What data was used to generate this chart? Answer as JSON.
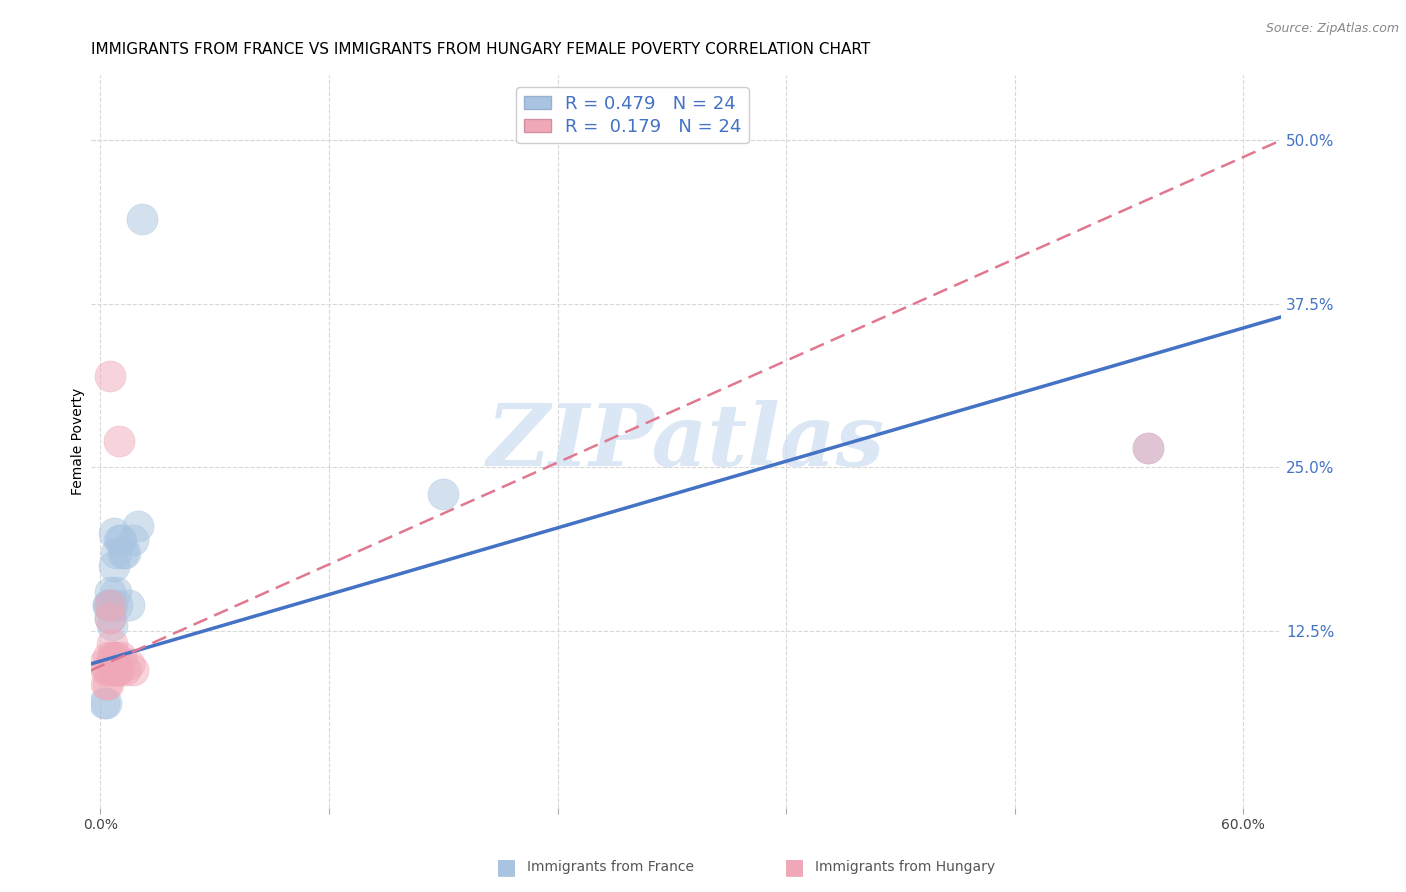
{
  "title": "IMMIGRANTS FROM FRANCE VS IMMIGRANTS FROM HUNGARY FEMALE POVERTY CORRELATION CHART",
  "source": "Source: ZipAtlas.com",
  "xlabel": "",
  "ylabel": "Female Poverty",
  "xlim": [
    -0.005,
    0.62
  ],
  "ylim": [
    -0.01,
    0.55
  ],
  "x_ticks": [
    0.0,
    0.12,
    0.24,
    0.36,
    0.48,
    0.6
  ],
  "x_tick_labels": [
    "0.0%",
    "",
    "",
    "",
    "",
    "60.0%"
  ],
  "y_tick_labels_right": [
    "12.5%",
    "25.0%",
    "37.5%",
    "50.0%"
  ],
  "y_ticks_right": [
    0.125,
    0.25,
    0.375,
    0.5
  ],
  "france_R": 0.479,
  "hungary_R": 0.179,
  "N": 24,
  "france_color": "#a8c4e0",
  "hungary_color": "#f0a8b8",
  "france_line_color": "#4472c4",
  "hungary_line_color": "#e07890",
  "watermark": "ZIPatlas",
  "watermark_color": "#ccddf0",
  "legend_text_color": "#4472c4",
  "france_x": [
    0.002,
    0.003,
    0.004,
    0.004,
    0.005,
    0.005,
    0.005,
    0.006,
    0.006,
    0.007,
    0.007,
    0.008,
    0.008,
    0.009,
    0.01,
    0.011,
    0.012,
    0.013,
    0.015,
    0.017,
    0.02,
    0.022,
    0.18,
    0.55
  ],
  "france_y": [
    0.07,
    0.07,
    0.145,
    0.145,
    0.155,
    0.145,
    0.135,
    0.145,
    0.13,
    0.175,
    0.2,
    0.155,
    0.185,
    0.145,
    0.195,
    0.195,
    0.185,
    0.185,
    0.145,
    0.195,
    0.205,
    0.44,
    0.23,
    0.265
  ],
  "hungary_x": [
    0.002,
    0.003,
    0.003,
    0.004,
    0.004,
    0.004,
    0.005,
    0.005,
    0.005,
    0.006,
    0.006,
    0.006,
    0.007,
    0.007,
    0.008,
    0.008,
    0.009,
    0.01,
    0.01,
    0.011,
    0.013,
    0.015,
    0.017,
    0.55
  ],
  "hungary_y": [
    0.1,
    0.085,
    0.095,
    0.085,
    0.095,
    0.105,
    0.32,
    0.135,
    0.145,
    0.105,
    0.115,
    0.095,
    0.1,
    0.105,
    0.095,
    0.105,
    0.095,
    0.095,
    0.27,
    0.105,
    0.095,
    0.1,
    0.095,
    0.265
  ],
  "grid_color": "#d8d8d8",
  "background_color": "#ffffff",
  "title_fontsize": 11,
  "axis_label_fontsize": 10,
  "france_line_start_y": 0.1,
  "france_line_end_y": 0.365,
  "hungary_line_start_y": 0.095,
  "hungary_line_end_y": 0.5
}
